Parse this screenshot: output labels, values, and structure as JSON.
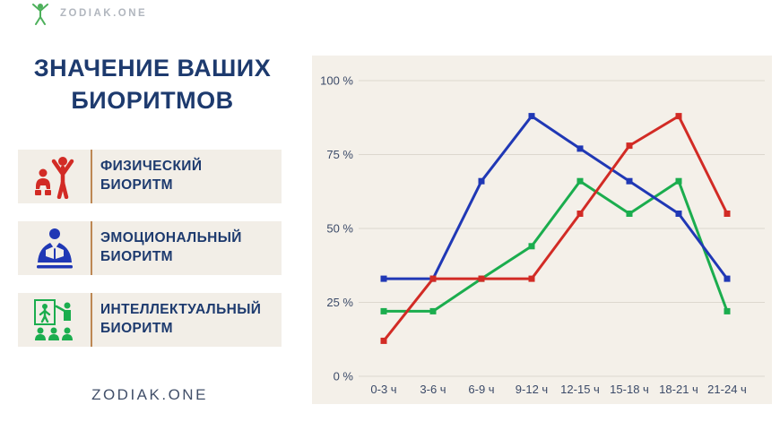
{
  "header": {
    "logo_text": "ZODIAK.ONE"
  },
  "title": {
    "line1": "ЗНАЧЕНИЕ ВАШИХ",
    "line2": "БИОРИТМОВ"
  },
  "legend": {
    "items": [
      {
        "label_line1": "ФИЗИЧЕСКИЙ",
        "label_line2": "БИОРИТМ",
        "icon": "exercise-icon",
        "color": "#d22b25"
      },
      {
        "label_line1": "ЭМОЦИОНАЛЬНЫЙ",
        "label_line2": "БИОРИТМ",
        "icon": "reading-person-icon",
        "color": "#2038b5"
      },
      {
        "label_line1": "ИНТЕЛЛЕКТУАЛЬНЫЙ",
        "label_line2": "БИОРИТМ",
        "icon": "presentation-board-icon",
        "color": "#1bad4e"
      }
    ]
  },
  "footer": {
    "site": "ZODIAK.ONE"
  },
  "chart_data": {
    "type": "line",
    "categories": [
      "0-3 ч",
      "3-6 ч",
      "6-9 ч",
      "9-12 ч",
      "12-15 ч",
      "15-18 ч",
      "18-21 ч",
      "21-24 ч"
    ],
    "series": [
      {
        "name": "Физический биоритм",
        "color": "#d22b25",
        "values": [
          12,
          33,
          33,
          33,
          55,
          78,
          88,
          55
        ]
      },
      {
        "name": "Эмоциональный биоритм",
        "color": "#2038b5",
        "values": [
          33,
          33,
          66,
          88,
          77,
          66,
          55,
          33
        ]
      },
      {
        "name": "Интеллектуальный биоритм",
        "color": "#1bad4e",
        "values": [
          22,
          22,
          33,
          44,
          66,
          55,
          66,
          22
        ]
      }
    ],
    "yticks": [
      {
        "label": "100 %",
        "value": 100
      },
      {
        "label": "75 %",
        "value": 75
      },
      {
        "label": "50 %",
        "value": 50
      },
      {
        "label": "25 %",
        "value": 25
      },
      {
        "label": "0 %",
        "value": 0
      }
    ],
    "ylim": [
      0,
      100
    ],
    "grid": true,
    "background": "#f4f0e9",
    "gridline_color": "#ddd8ce",
    "axis_text_color": "#3b4a68",
    "legend_position": "left-panel"
  }
}
